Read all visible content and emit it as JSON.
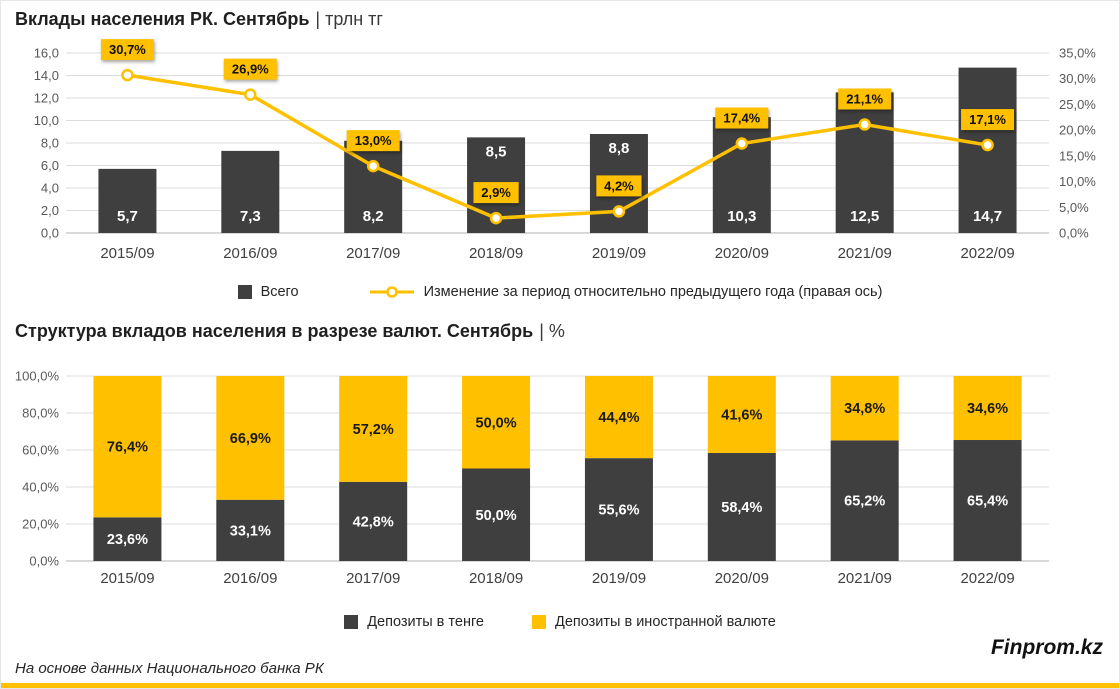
{
  "colors": {
    "bar_dark": "#3f3f3f",
    "accent_yellow": "#ffc000",
    "grid": "#dcdcdc",
    "axis": "#b0b0b0",
    "tick_gray": "#595959"
  },
  "footer": {
    "source": "На основе данных Национального банка РК",
    "brand": "Finprom.kz"
  },
  "chart_data": [
    {
      "type": "bar",
      "combo": "bar+line",
      "title": "Вклады населения РК. Сентябрь",
      "title_suffix": "| трлн тг",
      "categories": [
        "2015/09",
        "2016/09",
        "2017/09",
        "2018/09",
        "2019/09",
        "2020/09",
        "2021/09",
        "2022/09"
      ],
      "series": [
        {
          "name": "Всего",
          "kind": "bar",
          "axis": "left",
          "values": [
            5.7,
            7.3,
            8.2,
            8.5,
            8.8,
            10.3,
            12.5,
            14.7
          ],
          "labels": [
            "5,7",
            "7,3",
            "8,2",
            "8,5",
            "8,8",
            "10,3",
            "12,5",
            "14,7"
          ]
        },
        {
          "name": "Изменение за период относительно предыдущего года (правая ось)",
          "kind": "line",
          "axis": "right",
          "values": [
            30.7,
            26.9,
            13.0,
            2.9,
            4.2,
            17.4,
            21.1,
            17.1
          ],
          "labels": [
            "30,7%",
            "26,9%",
            "13,0%",
            "2,9%",
            "4,2%",
            "17,4%",
            "21,1%",
            "17,1%"
          ]
        }
      ],
      "y_left": {
        "min": 0,
        "max": 16,
        "ticks": [
          "16,0",
          "14,0",
          "12,0",
          "10,0",
          "8,0",
          "6,0",
          "4,0",
          "2,0",
          "0,0"
        ]
      },
      "y_right": {
        "min": 0,
        "max": 35,
        "ticks": [
          "35,0%",
          "30,0%",
          "25,0%",
          "20,0%",
          "15,0%",
          "10,0%",
          "5,0%",
          "0,0%"
        ]
      },
      "grid": true,
      "legend_position": "bottom"
    },
    {
      "type": "bar",
      "stacked_percent": true,
      "title": "Структура вкладов населения в разрезе валют. Сентябрь",
      "title_suffix": "| %",
      "categories": [
        "2015/09",
        "2016/09",
        "2017/09",
        "2018/09",
        "2019/09",
        "2020/09",
        "2021/09",
        "2022/09"
      ],
      "series": [
        {
          "name": "Депозиты в тенге",
          "values": [
            23.6,
            33.1,
            42.8,
            50.0,
            55.6,
            58.4,
            65.2,
            65.4
          ],
          "labels": [
            "23,6%",
            "33,1%",
            "42,8%",
            "50,0%",
            "55,6%",
            "58,4%",
            "65,2%",
            "65,4%"
          ]
        },
        {
          "name": "Депозиты в иностранной валюте",
          "values": [
            76.4,
            66.9,
            57.2,
            50.0,
            44.4,
            41.6,
            34.8,
            34.6
          ],
          "labels": [
            "76,4%",
            "66,9%",
            "57,2%",
            "50,0%",
            "44,4%",
            "41,6%",
            "34,8%",
            "34,6%"
          ]
        }
      ],
      "y_left": {
        "min": 0,
        "max": 100,
        "ticks": [
          "100,0%",
          "80,0%",
          "60,0%",
          "40,0%",
          "20,0%",
          "0,0%"
        ]
      },
      "grid": true,
      "legend_position": "bottom"
    }
  ]
}
